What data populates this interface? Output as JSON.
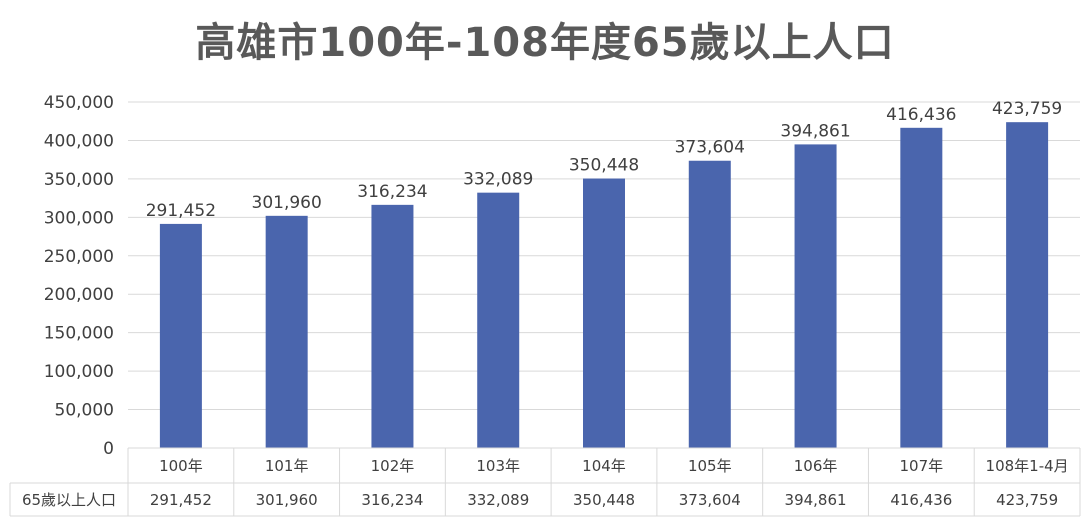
{
  "chart_data": {
    "type": "bar",
    "title": "高雄市100年-108年度65歲以上人口",
    "categories": [
      "100年",
      "101年",
      "102年",
      "103年",
      "104年",
      "105年",
      "106年",
      "107年",
      "108年1-4月"
    ],
    "series": [
      {
        "name": "65歲以上人口",
        "values": [
          291452,
          301960,
          316234,
          332089,
          350448,
          373604,
          394861,
          416436,
          423759
        ],
        "labels": [
          "291,452",
          "301,960",
          "316,234",
          "332,089",
          "350,448",
          "373,604",
          "394,861",
          "416,436",
          "423,759"
        ]
      }
    ],
    "ylim": [
      0,
      450000
    ],
    "yticks": [
      0,
      50000,
      100000,
      150000,
      200000,
      250000,
      300000,
      350000,
      400000,
      450000
    ],
    "ytick_labels": [
      "0",
      "50,000",
      "100,000",
      "150,000",
      "200,000",
      "250,000",
      "300,000",
      "350,000",
      "400,000",
      "450,000"
    ],
    "grid": true,
    "data_table": true,
    "bar_color": "#4a65ad",
    "grid_color": "#d9d9d9"
  }
}
